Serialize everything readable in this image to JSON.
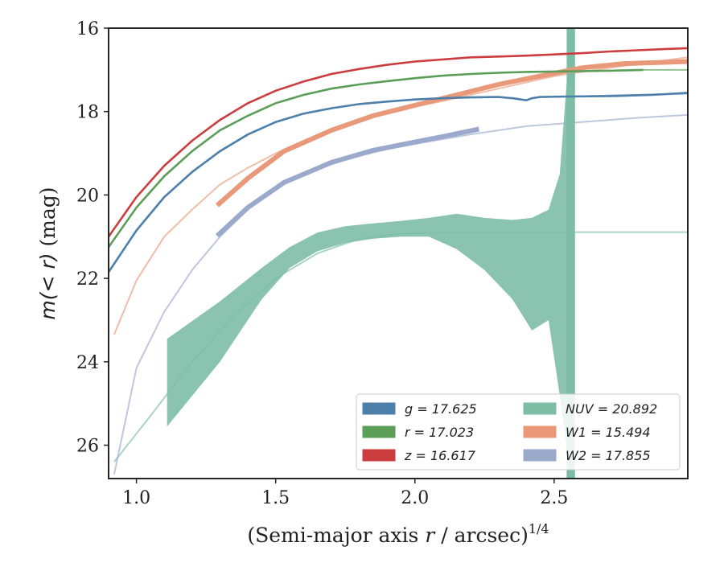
{
  "chart_data": {
    "type": "line",
    "title": "",
    "xlabel_main": "(Semi-major axis ",
    "xlabel_var": "r",
    "xlabel_rest": " / arcsec)",
    "xlabel_sup": "1/4",
    "ylabel_main": "m(< r)",
    "ylabel_unit": " (mag)",
    "xlim": [
      0.9,
      2.98
    ],
    "ylim": [
      26.8,
      16.0
    ],
    "y_inverted": true,
    "xticks": [
      1.0,
      1.5,
      2.0,
      2.5
    ],
    "xtick_labels": [
      "1.0",
      "1.5",
      "2.0",
      "2.5"
    ],
    "yticks": [
      16,
      18,
      20,
      22,
      24,
      26
    ],
    "ytick_labels": [
      "16",
      "18",
      "20",
      "22",
      "24",
      "26"
    ],
    "legend_position": "lower-right",
    "legend": [
      {
        "label": "g = 17.625",
        "color": "#4c7faa"
      },
      {
        "label": "NUV = 20.892",
        "color": "#7dbda6"
      },
      {
        "label": "r = 17.023",
        "color": "#5a9e58"
      },
      {
        "label": "W1 = 15.494",
        "color": "#e9987a"
      },
      {
        "label": "z = 16.617",
        "color": "#cc3d3f"
      },
      {
        "label": "W2 = 17.855",
        "color": "#9aa9cc"
      }
    ],
    "series": [
      {
        "name": "g",
        "color": "#4c7faa",
        "x": [
          0.9,
          1.0,
          1.1,
          1.2,
          1.3,
          1.4,
          1.5,
          1.6,
          1.7,
          1.8,
          1.9,
          2.0,
          2.1,
          2.2,
          2.3,
          2.35,
          2.4,
          2.42,
          2.45,
          2.55,
          2.7,
          2.85,
          2.98
        ],
        "y": [
          21.85,
          20.85,
          20.05,
          19.45,
          18.95,
          18.55,
          18.25,
          18.05,
          17.92,
          17.82,
          17.76,
          17.71,
          17.68,
          17.66,
          17.65,
          17.68,
          17.73,
          17.68,
          17.65,
          17.64,
          17.63,
          17.6,
          17.55
        ]
      },
      {
        "name": "r",
        "color": "#5a9e58",
        "x": [
          0.9,
          1.0,
          1.1,
          1.2,
          1.3,
          1.4,
          1.5,
          1.6,
          1.7,
          1.8,
          1.9,
          2.0,
          2.1,
          2.2,
          2.3,
          2.4,
          2.5,
          2.6,
          2.7,
          2.82
        ],
        "y": [
          21.25,
          20.3,
          19.55,
          18.95,
          18.45,
          18.1,
          17.8,
          17.6,
          17.45,
          17.35,
          17.27,
          17.2,
          17.14,
          17.1,
          17.07,
          17.05,
          17.04,
          17.03,
          17.02,
          17.0
        ]
      },
      {
        "name": "z",
        "color": "#cc3d3f",
        "x": [
          0.9,
          1.0,
          1.1,
          1.2,
          1.3,
          1.4,
          1.5,
          1.6,
          1.7,
          1.8,
          1.9,
          2.0,
          2.1,
          2.2,
          2.3,
          2.4,
          2.5,
          2.6,
          2.7,
          2.8,
          2.9,
          2.98
        ],
        "y": [
          21.0,
          20.05,
          19.3,
          18.7,
          18.2,
          17.8,
          17.5,
          17.28,
          17.1,
          16.98,
          16.88,
          16.8,
          16.75,
          16.7,
          16.68,
          16.66,
          16.63,
          16.6,
          16.56,
          16.53,
          16.5,
          16.48
        ]
      },
      {
        "name": "NUV",
        "color": "#7dbda6",
        "x": [
          1.11,
          1.3,
          1.45,
          1.55,
          1.65,
          1.75,
          1.85,
          1.95,
          2.05,
          2.15,
          2.25,
          2.35,
          2.42,
          2.48,
          2.52,
          2.56
        ],
        "y_upper": [
          23.45,
          22.55,
          21.75,
          21.25,
          20.9,
          20.75,
          20.68,
          20.62,
          20.55,
          20.45,
          20.55,
          20.6,
          20.55,
          20.35,
          19.5,
          16.0
        ],
        "y_lower": [
          25.55,
          24.0,
          22.5,
          21.75,
          21.35,
          21.15,
          21.05,
          21.0,
          21.0,
          21.3,
          21.8,
          22.5,
          23.25,
          23.0,
          24.8,
          26.8
        ]
      },
      {
        "name": "W1",
        "color": "#e9987a",
        "x": [
          1.29,
          1.4,
          1.53,
          1.7,
          1.85,
          2.0,
          2.15,
          2.3,
          2.45,
          2.6,
          2.75,
          2.98
        ],
        "y": [
          20.25,
          19.6,
          18.95,
          18.45,
          18.1,
          17.85,
          17.6,
          17.35,
          17.15,
          16.95,
          16.85,
          16.8
        ]
      },
      {
        "name": "W2",
        "color": "#9aa9cc",
        "x": [
          1.29,
          1.4,
          1.53,
          1.7,
          1.85,
          2.0,
          2.1,
          2.23
        ],
        "y": [
          20.98,
          20.3,
          19.7,
          19.22,
          18.93,
          18.73,
          18.6,
          18.42
        ]
      }
    ],
    "extrapolations": [
      {
        "name": "g-tail",
        "color": "#4c7faa",
        "x": [
          2.55,
          2.98
        ],
        "y": [
          17.64,
          17.57
        ]
      },
      {
        "name": "r-tail",
        "color": "#5a9e58",
        "x": [
          2.82,
          2.98
        ],
        "y": [
          17.0,
          17.0
        ]
      },
      {
        "name": "NUV-model",
        "color": "#7dbda6",
        "x": [
          0.92,
          1.05,
          1.2,
          1.35,
          1.5,
          1.65,
          1.8,
          1.95,
          2.1,
          2.3,
          2.56,
          2.98
        ],
        "y": [
          26.4,
          25.3,
          24.0,
          22.9,
          22.0,
          21.4,
          21.05,
          20.93,
          20.9,
          20.89,
          20.89,
          20.89
        ]
      },
      {
        "name": "W1-model",
        "color": "#e9987a",
        "x": [
          0.92,
          1.0,
          1.1,
          1.2,
          1.3,
          1.4,
          1.5,
          1.6,
          1.7,
          1.8,
          1.95,
          2.1,
          2.3,
          2.5,
          2.7,
          2.98
        ],
        "y": [
          23.35,
          22.05,
          21.0,
          20.35,
          19.75,
          19.35,
          19.0,
          18.7,
          18.45,
          18.2,
          17.95,
          17.75,
          17.45,
          17.15,
          16.95,
          16.7
        ]
      },
      {
        "name": "W2-model",
        "color": "#9aa9cc",
        "x": [
          0.92,
          1.0,
          1.1,
          1.2,
          1.3,
          1.4,
          1.5,
          1.6,
          1.75,
          1.9,
          2.05,
          2.2,
          2.4,
          2.6,
          2.8,
          2.98
        ],
        "y": [
          26.7,
          24.15,
          22.8,
          21.8,
          21.0,
          20.35,
          19.85,
          19.5,
          19.15,
          18.9,
          18.72,
          18.55,
          18.35,
          18.25,
          18.15,
          18.08
        ]
      }
    ],
    "nuv_vertical_bar": {
      "x_from": 2.545,
      "x_to": 2.575,
      "color": "#7dbda6"
    }
  }
}
